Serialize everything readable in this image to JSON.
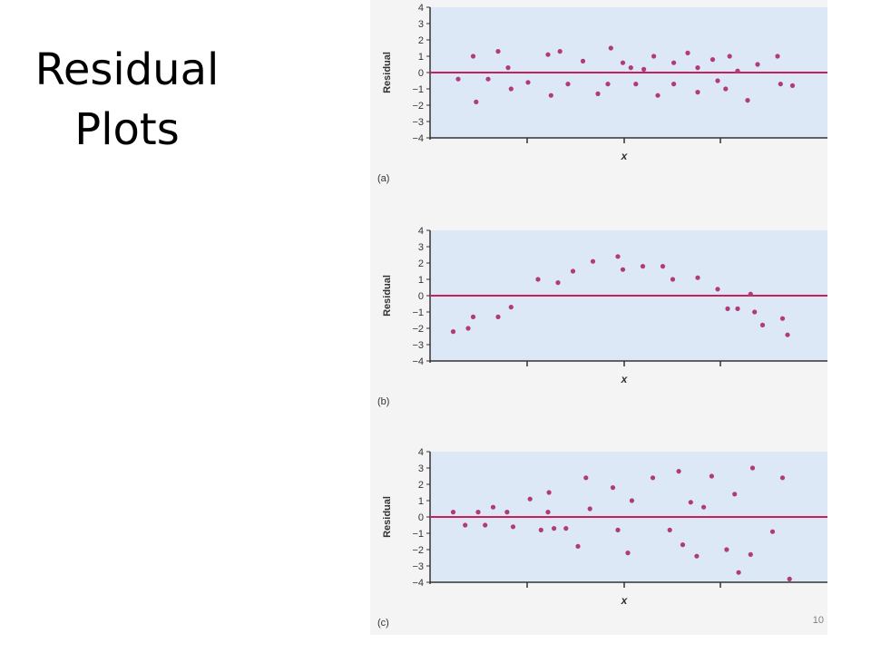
{
  "slide": {
    "title_line1": "Residual",
    "title_line2": "Plots",
    "page_number": "10"
  },
  "colors": {
    "plot_background": "#dde8f7",
    "zero_line": "#c8205a",
    "points": "#b03a7a",
    "axis": "#333333",
    "panel_background": "#f4f4f4"
  },
  "chart_data": [
    {
      "type": "scatter",
      "panel_label": "(a)",
      "xlabel": "x",
      "ylabel": "Residual",
      "ylim": [
        -4,
        4
      ],
      "yticks": [
        "4",
        "3",
        "2",
        "1",
        "0",
        "−1",
        "−2",
        "−3",
        "−4"
      ],
      "xlim": [
        0,
        34
      ],
      "grid": false,
      "reference_line": 0,
      "points": [
        {
          "x": 1,
          "y": -0.4
        },
        {
          "x": 2.5,
          "y": 1.0
        },
        {
          "x": 2.8,
          "y": -1.8
        },
        {
          "x": 4,
          "y": -0.4
        },
        {
          "x": 5,
          "y": 1.3
        },
        {
          "x": 6,
          "y": 0.3
        },
        {
          "x": 6.3,
          "y": -1.0
        },
        {
          "x": 8,
          "y": -0.6
        },
        {
          "x": 10,
          "y": 1.1
        },
        {
          "x": 10.3,
          "y": -1.4
        },
        {
          "x": 11.2,
          "y": 1.3
        },
        {
          "x": 12,
          "y": -0.7
        },
        {
          "x": 13.5,
          "y": 0.7
        },
        {
          "x": 15,
          "y": -1.3
        },
        {
          "x": 16,
          "y": -0.7
        },
        {
          "x": 16.3,
          "y": 1.5
        },
        {
          "x": 17.5,
          "y": 0.6
        },
        {
          "x": 18.3,
          "y": 0.3
        },
        {
          "x": 18.8,
          "y": -0.7
        },
        {
          "x": 19.6,
          "y": 0.2
        },
        {
          "x": 20.6,
          "y": 1.0
        },
        {
          "x": 21,
          "y": -1.4
        },
        {
          "x": 22.6,
          "y": 0.6
        },
        {
          "x": 22.6,
          "y": -0.7
        },
        {
          "x": 24,
          "y": 1.2
        },
        {
          "x": 25,
          "y": 0.3
        },
        {
          "x": 25,
          "y": -1.2
        },
        {
          "x": 26.5,
          "y": 0.8
        },
        {
          "x": 27,
          "y": -0.5
        },
        {
          "x": 27.8,
          "y": -1.0
        },
        {
          "x": 28.2,
          "y": 1.0
        },
        {
          "x": 29,
          "y": 0.1
        },
        {
          "x": 30,
          "y": -1.7
        },
        {
          "x": 31,
          "y": 0.5
        },
        {
          "x": 33,
          "y": 1.0
        },
        {
          "x": 33.3,
          "y": -0.7
        },
        {
          "x": 34.5,
          "y": -0.8
        }
      ]
    },
    {
      "type": "scatter",
      "panel_label": "(b)",
      "xlabel": "x",
      "ylabel": "Residual",
      "ylim": [
        -4,
        4
      ],
      "yticks": [
        "4",
        "3",
        "2",
        "1",
        "0",
        "−1",
        "−2",
        "−3",
        "−4"
      ],
      "xlim": [
        0,
        34
      ],
      "grid": false,
      "reference_line": 0,
      "points": [
        {
          "x": 0.5,
          "y": -2.2
        },
        {
          "x": 2,
          "y": -2.0
        },
        {
          "x": 2.5,
          "y": -1.3
        },
        {
          "x": 5,
          "y": -1.3
        },
        {
          "x": 6.3,
          "y": -0.7
        },
        {
          "x": 9,
          "y": 1.0
        },
        {
          "x": 11,
          "y": 0.8
        },
        {
          "x": 12.5,
          "y": 1.5
        },
        {
          "x": 14.5,
          "y": 2.1
        },
        {
          "x": 17,
          "y": 2.4
        },
        {
          "x": 17.5,
          "y": 1.6
        },
        {
          "x": 19.5,
          "y": 1.8
        },
        {
          "x": 21.5,
          "y": 1.8
        },
        {
          "x": 22.5,
          "y": 1.0
        },
        {
          "x": 25,
          "y": 1.1
        },
        {
          "x": 27,
          "y": 0.4
        },
        {
          "x": 28,
          "y": -0.8
        },
        {
          "x": 29,
          "y": -0.8
        },
        {
          "x": 30.3,
          "y": 0.1
        },
        {
          "x": 30.7,
          "y": -1.0
        },
        {
          "x": 31.5,
          "y": -1.8
        },
        {
          "x": 33.5,
          "y": -1.4
        },
        {
          "x": 34,
          "y": -2.4
        }
      ]
    },
    {
      "type": "scatter",
      "panel_label": "(c)",
      "xlabel": "x",
      "ylabel": "Residual",
      "ylim": [
        -4,
        4
      ],
      "yticks": [
        "4",
        "3",
        "2",
        "1",
        "0",
        "−1",
        "−2",
        "−3",
        "−4"
      ],
      "xlim": [
        0,
        34
      ],
      "grid": false,
      "reference_line": 0,
      "points": [
        {
          "x": 0.5,
          "y": 0.3
        },
        {
          "x": 1.7,
          "y": -0.5
        },
        {
          "x": 3,
          "y": 0.3
        },
        {
          "x": 3.7,
          "y": -0.5
        },
        {
          "x": 4.5,
          "y": 0.6
        },
        {
          "x": 5.9,
          "y": 0.3
        },
        {
          "x": 6.5,
          "y": -0.6
        },
        {
          "x": 8.2,
          "y": 1.1
        },
        {
          "x": 9.3,
          "y": -0.8
        },
        {
          "x": 10,
          "y": 0.3
        },
        {
          "x": 10.1,
          "y": 1.5
        },
        {
          "x": 10.6,
          "y": -0.7
        },
        {
          "x": 11.8,
          "y": -0.7
        },
        {
          "x": 13,
          "y": -1.8
        },
        {
          "x": 13.8,
          "y": 2.4
        },
        {
          "x": 14.2,
          "y": 0.5
        },
        {
          "x": 16.5,
          "y": 1.8
        },
        {
          "x": 17,
          "y": -0.8
        },
        {
          "x": 18,
          "y": -2.2
        },
        {
          "x": 18.4,
          "y": 1.0
        },
        {
          "x": 20.5,
          "y": 2.4
        },
        {
          "x": 22.2,
          "y": -0.8
        },
        {
          "x": 23.1,
          "y": 2.8
        },
        {
          "x": 23.5,
          "y": -1.7
        },
        {
          "x": 24.3,
          "y": 0.9
        },
        {
          "x": 24.9,
          "y": -2.4
        },
        {
          "x": 25.6,
          "y": 0.6
        },
        {
          "x": 26.4,
          "y": 2.5
        },
        {
          "x": 27.9,
          "y": -2.0
        },
        {
          "x": 28.7,
          "y": 1.4
        },
        {
          "x": 29.1,
          "y": -3.4
        },
        {
          "x": 30.3,
          "y": -2.3
        },
        {
          "x": 30.5,
          "y": 3.0
        },
        {
          "x": 32.5,
          "y": -0.9
        },
        {
          "x": 33.5,
          "y": 2.4
        },
        {
          "x": 34.2,
          "y": -3.8
        }
      ]
    }
  ]
}
